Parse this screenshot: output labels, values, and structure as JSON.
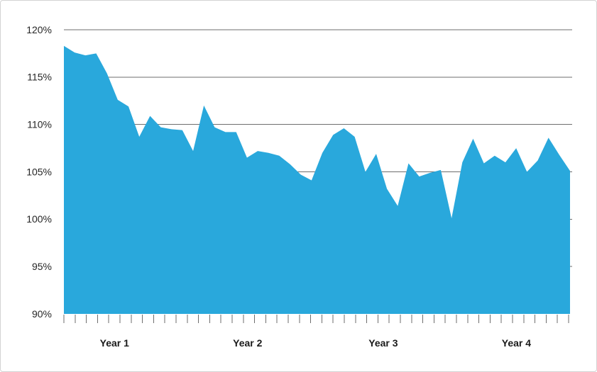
{
  "chart_data": {
    "type": "area",
    "unit": "%",
    "y_axis": {
      "min": 90,
      "max": 120,
      "tick_values": [
        120,
        115,
        110,
        105,
        100,
        95,
        90
      ],
      "tick_labels": [
        "120%",
        "115%",
        "110%",
        "105%",
        "100%",
        "95%",
        "90%"
      ],
      "gridlines": true
    },
    "x_axis": {
      "group_labels": [
        "Year 1",
        "Year 2",
        "Year 3",
        "Year 4"
      ],
      "points_per_group": 12,
      "minor_tick_count": 46
    },
    "values": [
      118.3,
      117.6,
      117.3,
      117.5,
      115.4,
      112.6,
      111.9,
      108.7,
      110.9,
      109.7,
      109.5,
      109.4,
      107.2,
      112.0,
      109.7,
      109.2,
      109.2,
      106.5,
      107.2,
      107.0,
      106.7,
      105.8,
      104.7,
      104.1,
      107.0,
      108.9,
      109.6,
      108.7,
      105.0,
      106.9,
      103.2,
      101.4,
      105.9,
      104.5,
      104.9,
      105.2,
      100.1,
      106.0,
      108.5,
      105.9,
      106.7,
      106.0,
      107.5,
      105.0,
      106.2,
      108.6,
      106.8,
      105.1
    ],
    "colors": {
      "area_fill": "#29A8DC",
      "gridline": "#6E6E6E",
      "axis_tick": "#6E6E6E",
      "label_text": "#262626",
      "frame_border": "#D3D3D3",
      "background": "#FFFFFF"
    },
    "legend": null,
    "title": null
  }
}
